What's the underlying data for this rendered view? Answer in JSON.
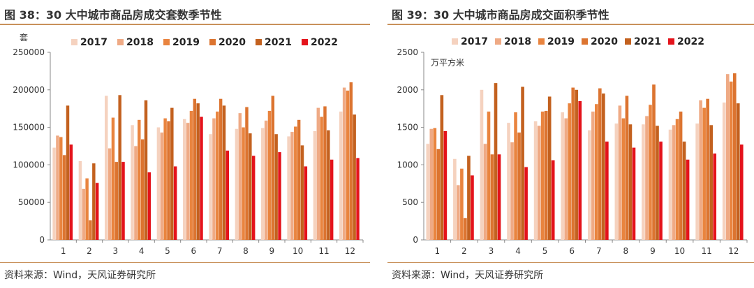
{
  "charts": [
    {
      "title": "图 38：30 大中城市商品房成交套数季节性",
      "source": "资料来源：Wind，天风证券研究所",
      "colors": {
        "rule": "#c8915a"
      }
    },
    {
      "title": "图 39：30 大中城市商品房成交面积季节性",
      "source": "资料来源：Wind，天风证券研究所",
      "colors": {
        "rule": "#c8915a"
      }
    }
  ],
  "chart_data": [
    {
      "type": "bar",
      "title": "30 大中城市商品房成交套数季节性",
      "ylabel": "套",
      "xlabel": "",
      "ylim": [
        0,
        250000
      ],
      "yticks": [
        0,
        50000,
        100000,
        150000,
        200000,
        250000
      ],
      "ytick_labels": [
        "0",
        "50000",
        "100000",
        "150000",
        "200000",
        "250000"
      ],
      "categories": [
        "1",
        "2",
        "3",
        "4",
        "5",
        "6",
        "7",
        "8",
        "9",
        "10",
        "11",
        "12"
      ],
      "grid": false,
      "legend_position": "top",
      "series": [
        {
          "name": "2017",
          "color": "#f5d2bf",
          "values": [
            123000,
            105000,
            192000,
            153000,
            150000,
            161000,
            141000,
            148000,
            149000,
            138000,
            145000,
            171000
          ]
        },
        {
          "name": "2018",
          "color": "#efaa85",
          "values": [
            139000,
            68000,
            122000,
            125000,
            143000,
            156000,
            162000,
            169000,
            159000,
            144000,
            176000,
            203000
          ]
        },
        {
          "name": "2019",
          "color": "#e9843f",
          "values": [
            137000,
            82000,
            163000,
            160000,
            162000,
            172000,
            171000,
            150000,
            172000,
            151000,
            164000,
            199000
          ]
        },
        {
          "name": "2020",
          "color": "#dc7430",
          "values": [
            113000,
            26000,
            104000,
            134000,
            158000,
            188000,
            188000,
            177000,
            192000,
            160000,
            178000,
            210000
          ]
        },
        {
          "name": "2021",
          "color": "#c3611f",
          "values": [
            179000,
            102000,
            193000,
            186000,
            176000,
            182000,
            179000,
            142000,
            141000,
            126000,
            146000,
            167000
          ]
        },
        {
          "name": "2022",
          "color": "#e4131b",
          "values": [
            127000,
            76000,
            104000,
            90000,
            98000,
            164000,
            119000,
            112000,
            117000,
            98000,
            107000,
            109000
          ]
        }
      ]
    },
    {
      "type": "bar",
      "title": "30 大中城市商品房成交面积季节性",
      "ylabel": "万平方米",
      "xlabel": "",
      "ylim": [
        0,
        2500
      ],
      "yticks": [
        0,
        500,
        1000,
        1500,
        2000,
        2500
      ],
      "ytick_labels": [
        "0",
        "500",
        "1000",
        "1500",
        "2000",
        "2500"
      ],
      "categories": [
        "1",
        "2",
        "3",
        "4",
        "5",
        "6",
        "7",
        "8",
        "9",
        "10",
        "11",
        "12"
      ],
      "grid": false,
      "legend_position": "top",
      "series": [
        {
          "name": "2017",
          "color": "#f5d2bf",
          "values": [
            1280,
            1080,
            2000,
            1560,
            1580,
            1700,
            1460,
            1550,
            1540,
            1470,
            1550,
            1830
          ]
        },
        {
          "name": "2018",
          "color": "#efaa85",
          "values": [
            1480,
            730,
            1280,
            1300,
            1520,
            1620,
            1710,
            1790,
            1650,
            1530,
            1860,
            2210
          ]
        },
        {
          "name": "2019",
          "color": "#e9843f",
          "values": [
            1490,
            950,
            1710,
            1700,
            1710,
            1820,
            1810,
            1620,
            1800,
            1610,
            1760,
            2110
          ]
        },
        {
          "name": "2020",
          "color": "#dc7430",
          "values": [
            1210,
            290,
            1140,
            1430,
            1720,
            2030,
            2020,
            1920,
            2070,
            1710,
            1880,
            2220
          ]
        },
        {
          "name": "2021",
          "color": "#c3611f",
          "values": [
            1930,
            1120,
            2090,
            2040,
            1910,
            2000,
            1950,
            1540,
            1520,
            1310,
            1530,
            1820
          ]
        },
        {
          "name": "2022",
          "color": "#e4131b",
          "values": [
            1450,
            860,
            1140,
            970,
            1060,
            1850,
            1310,
            1230,
            1310,
            1070,
            1150,
            1270
          ]
        }
      ]
    }
  ]
}
